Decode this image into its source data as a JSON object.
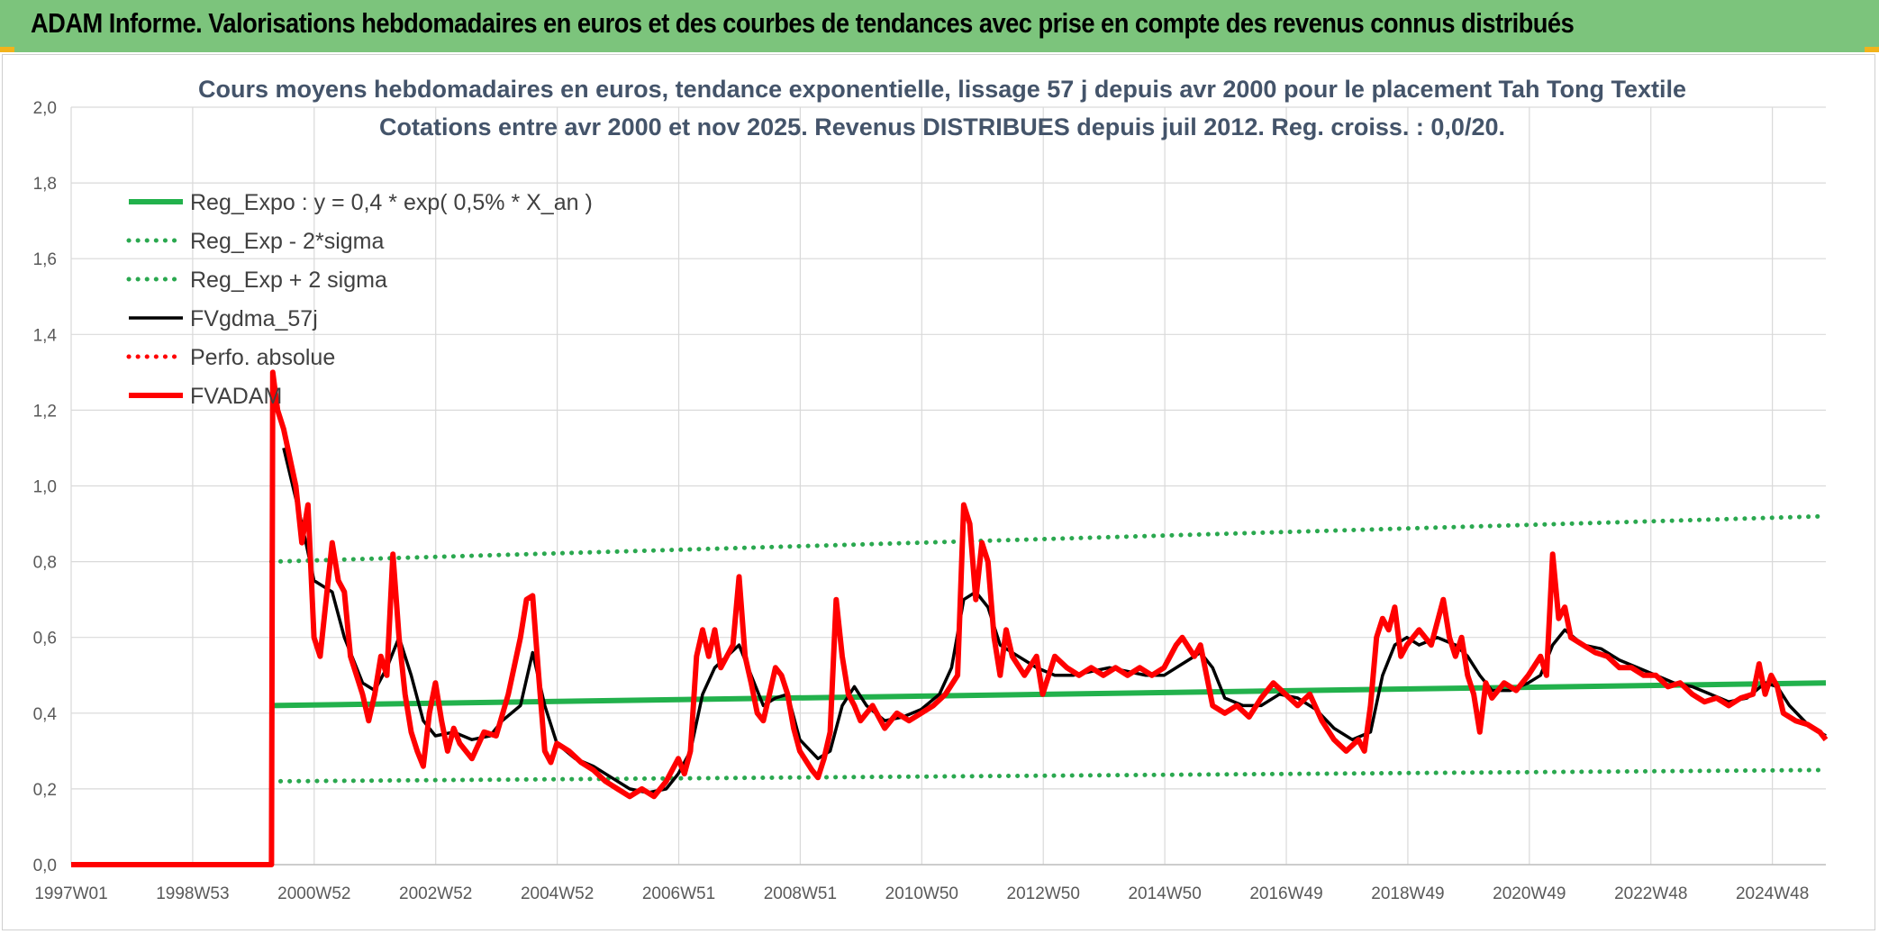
{
  "header": {
    "title": "ADAM Informe. Valorisations hebdomadaires en euros et des courbes de tendances avec prise en compte des revenus connus distribués"
  },
  "colors": {
    "header_bg": "#7cc47c",
    "accent": "#f2b31b",
    "green": "#22b14c",
    "dotted_green": "#2aa84f",
    "black": "#000000",
    "red": "#ff0000"
  },
  "chart_data": {
    "type": "line",
    "title": "Cours moyens hebdomadaires en euros, tendance exponentielle, lissage 57 j depuis avr 2000 pour le placement Tah Tong Textile",
    "subtitle": "Cotations entre avr 2000 et nov 2025. Revenus DISTRIBUES depuis juil 2012. Reg. croiss. : 0,0/20.",
    "xlabel": "",
    "ylabel": "",
    "x_tick_labels": [
      "1997W01",
      "1998W53",
      "2000W52",
      "2002W52",
      "2004W52",
      "2006W51",
      "2008W51",
      "2010W50",
      "2012W50",
      "2014W50",
      "2016W49",
      "2018W49",
      "2020W49",
      "2022W48",
      "2024W48"
    ],
    "y_tick_labels": [
      "0,0",
      "0,2",
      "0,4",
      "0,6",
      "0,8",
      "1,0",
      "1,2",
      "1,4",
      "1,6",
      "1,8",
      "2,0"
    ],
    "xlim": [
      1997.0,
      2025.9
    ],
    "ylim": [
      0,
      2
    ],
    "grid": true,
    "legend_position": "top-left",
    "series": [
      {
        "name": "Reg_Expo : y = 0,4 * exp( 0,5% *  X_an )",
        "style": "solid-thick",
        "color": "#22b14c",
        "points": [
          [
            2000.3,
            0.42
          ],
          [
            2025.9,
            0.48
          ]
        ]
      },
      {
        "name": "Reg_Exp - 2*sigma",
        "style": "dotted",
        "color": "#2aa84f",
        "points": [
          [
            2000.3,
            0.22
          ],
          [
            2025.9,
            0.25
          ]
        ]
      },
      {
        "name": "Reg_Exp + 2 sigma",
        "style": "dotted",
        "color": "#2aa84f",
        "points": [
          [
            2000.3,
            0.8
          ],
          [
            2025.9,
            0.92
          ]
        ]
      },
      {
        "name": "FVgdma_57j",
        "style": "solid",
        "color": "#000000",
        "points": [
          [
            2000.5,
            1.1
          ],
          [
            2000.8,
            0.9
          ],
          [
            2001.0,
            0.75
          ],
          [
            2001.3,
            0.72
          ],
          [
            2001.5,
            0.6
          ],
          [
            2001.8,
            0.48
          ],
          [
            2002.0,
            0.46
          ],
          [
            2002.2,
            0.52
          ],
          [
            2002.4,
            0.6
          ],
          [
            2002.6,
            0.5
          ],
          [
            2002.8,
            0.38
          ],
          [
            2003.0,
            0.34
          ],
          [
            2003.3,
            0.35
          ],
          [
            2003.6,
            0.33
          ],
          [
            2003.9,
            0.34
          ],
          [
            2004.1,
            0.38
          ],
          [
            2004.4,
            0.42
          ],
          [
            2004.6,
            0.56
          ],
          [
            2004.8,
            0.42
          ],
          [
            2005.0,
            0.32
          ],
          [
            2005.3,
            0.28
          ],
          [
            2005.6,
            0.26
          ],
          [
            2005.9,
            0.23
          ],
          [
            2006.2,
            0.2
          ],
          [
            2006.5,
            0.19
          ],
          [
            2006.8,
            0.2
          ],
          [
            2007.0,
            0.24
          ],
          [
            2007.2,
            0.3
          ],
          [
            2007.4,
            0.45
          ],
          [
            2007.6,
            0.52
          ],
          [
            2007.8,
            0.55
          ],
          [
            2008.0,
            0.58
          ],
          [
            2008.2,
            0.5
          ],
          [
            2008.4,
            0.42
          ],
          [
            2008.6,
            0.44
          ],
          [
            2008.8,
            0.45
          ],
          [
            2009.0,
            0.33
          ],
          [
            2009.3,
            0.28
          ],
          [
            2009.5,
            0.3
          ],
          [
            2009.7,
            0.42
          ],
          [
            2009.9,
            0.47
          ],
          [
            2010.1,
            0.42
          ],
          [
            2010.4,
            0.38
          ],
          [
            2010.7,
            0.39
          ],
          [
            2011.0,
            0.41
          ],
          [
            2011.3,
            0.45
          ],
          [
            2011.5,
            0.52
          ],
          [
            2011.7,
            0.7
          ],
          [
            2011.9,
            0.72
          ],
          [
            2012.1,
            0.68
          ],
          [
            2012.3,
            0.58
          ],
          [
            2012.6,
            0.55
          ],
          [
            2012.9,
            0.52
          ],
          [
            2013.2,
            0.5
          ],
          [
            2013.5,
            0.5
          ],
          [
            2013.8,
            0.51
          ],
          [
            2014.1,
            0.52
          ],
          [
            2014.4,
            0.51
          ],
          [
            2014.7,
            0.5
          ],
          [
            2015.0,
            0.5
          ],
          [
            2015.3,
            0.53
          ],
          [
            2015.6,
            0.56
          ],
          [
            2015.8,
            0.52
          ],
          [
            2016.0,
            0.44
          ],
          [
            2016.3,
            0.42
          ],
          [
            2016.6,
            0.42
          ],
          [
            2016.9,
            0.45
          ],
          [
            2017.2,
            0.44
          ],
          [
            2017.5,
            0.41
          ],
          [
            2017.8,
            0.36
          ],
          [
            2018.1,
            0.33
          ],
          [
            2018.4,
            0.35
          ],
          [
            2018.6,
            0.5
          ],
          [
            2018.8,
            0.58
          ],
          [
            2019.0,
            0.6
          ],
          [
            2019.2,
            0.58
          ],
          [
            2019.5,
            0.6
          ],
          [
            2019.8,
            0.58
          ],
          [
            2020.0,
            0.55
          ],
          [
            2020.2,
            0.5
          ],
          [
            2020.4,
            0.46
          ],
          [
            2020.7,
            0.46
          ],
          [
            2021.0,
            0.48
          ],
          [
            2021.2,
            0.5
          ],
          [
            2021.4,
            0.58
          ],
          [
            2021.6,
            0.62
          ],
          [
            2021.9,
            0.58
          ],
          [
            2022.2,
            0.57
          ],
          [
            2022.5,
            0.54
          ],
          [
            2022.8,
            0.52
          ],
          [
            2023.1,
            0.5
          ],
          [
            2023.4,
            0.48
          ],
          [
            2023.7,
            0.47
          ],
          [
            2024.0,
            0.45
          ],
          [
            2024.3,
            0.43
          ],
          [
            2024.6,
            0.44
          ],
          [
            2024.9,
            0.48
          ],
          [
            2025.1,
            0.47
          ],
          [
            2025.3,
            0.42
          ],
          [
            2025.6,
            0.37
          ],
          [
            2025.9,
            0.34
          ]
        ]
      },
      {
        "name": "Perfo. absolue",
        "style": "dotted",
        "color": "#ff0000",
        "points": []
      },
      {
        "name": "FVADAM",
        "style": "solid-thick",
        "color": "#ff0000",
        "points": [
          [
            1997.0,
            0.0
          ],
          [
            2000.3,
            0.0
          ],
          [
            2000.32,
            1.3
          ],
          [
            2000.4,
            1.2
          ],
          [
            2000.5,
            1.15
          ],
          [
            2000.7,
            1.0
          ],
          [
            2000.8,
            0.85
          ],
          [
            2000.9,
            0.95
          ],
          [
            2001.0,
            0.6
          ],
          [
            2001.1,
            0.55
          ],
          [
            2001.2,
            0.7
          ],
          [
            2001.3,
            0.85
          ],
          [
            2001.4,
            0.75
          ],
          [
            2001.5,
            0.72
          ],
          [
            2001.6,
            0.55
          ],
          [
            2001.8,
            0.45
          ],
          [
            2001.9,
            0.38
          ],
          [
            2002.0,
            0.45
          ],
          [
            2002.1,
            0.55
          ],
          [
            2002.2,
            0.5
          ],
          [
            2002.3,
            0.82
          ],
          [
            2002.4,
            0.6
          ],
          [
            2002.5,
            0.45
          ],
          [
            2002.6,
            0.35
          ],
          [
            2002.7,
            0.3
          ],
          [
            2002.8,
            0.26
          ],
          [
            2002.9,
            0.4
          ],
          [
            2003.0,
            0.48
          ],
          [
            2003.1,
            0.38
          ],
          [
            2003.2,
            0.3
          ],
          [
            2003.3,
            0.36
          ],
          [
            2003.4,
            0.32
          ],
          [
            2003.6,
            0.28
          ],
          [
            2003.8,
            0.35
          ],
          [
            2004.0,
            0.34
          ],
          [
            2004.2,
            0.45
          ],
          [
            2004.4,
            0.6
          ],
          [
            2004.5,
            0.7
          ],
          [
            2004.6,
            0.71
          ],
          [
            2004.7,
            0.5
          ],
          [
            2004.8,
            0.3
          ],
          [
            2004.9,
            0.27
          ],
          [
            2005.0,
            0.32
          ],
          [
            2005.2,
            0.3
          ],
          [
            2005.4,
            0.27
          ],
          [
            2005.6,
            0.25
          ],
          [
            2005.8,
            0.22
          ],
          [
            2006.0,
            0.2
          ],
          [
            2006.2,
            0.18
          ],
          [
            2006.4,
            0.2
          ],
          [
            2006.6,
            0.18
          ],
          [
            2006.8,
            0.22
          ],
          [
            2007.0,
            0.28
          ],
          [
            2007.1,
            0.24
          ],
          [
            2007.2,
            0.3
          ],
          [
            2007.3,
            0.55
          ],
          [
            2007.4,
            0.62
          ],
          [
            2007.5,
            0.55
          ],
          [
            2007.6,
            0.62
          ],
          [
            2007.7,
            0.52
          ],
          [
            2007.9,
            0.58
          ],
          [
            2008.0,
            0.76
          ],
          [
            2008.1,
            0.55
          ],
          [
            2008.2,
            0.48
          ],
          [
            2008.3,
            0.4
          ],
          [
            2008.4,
            0.38
          ],
          [
            2008.5,
            0.45
          ],
          [
            2008.6,
            0.52
          ],
          [
            2008.7,
            0.5
          ],
          [
            2008.8,
            0.45
          ],
          [
            2008.9,
            0.36
          ],
          [
            2009.0,
            0.3
          ],
          [
            2009.2,
            0.25
          ],
          [
            2009.3,
            0.23
          ],
          [
            2009.4,
            0.28
          ],
          [
            2009.5,
            0.35
          ],
          [
            2009.6,
            0.7
          ],
          [
            2009.7,
            0.55
          ],
          [
            2009.8,
            0.45
          ],
          [
            2009.9,
            0.42
          ],
          [
            2010.0,
            0.38
          ],
          [
            2010.2,
            0.42
          ],
          [
            2010.4,
            0.36
          ],
          [
            2010.6,
            0.4
          ],
          [
            2010.8,
            0.38
          ],
          [
            2011.0,
            0.4
          ],
          [
            2011.2,
            0.42
          ],
          [
            2011.4,
            0.45
          ],
          [
            2011.6,
            0.5
          ],
          [
            2011.7,
            0.95
          ],
          [
            2011.8,
            0.9
          ],
          [
            2011.9,
            0.7
          ],
          [
            2012.0,
            0.85
          ],
          [
            2012.1,
            0.8
          ],
          [
            2012.2,
            0.6
          ],
          [
            2012.3,
            0.5
          ],
          [
            2012.4,
            0.62
          ],
          [
            2012.5,
            0.55
          ],
          [
            2012.7,
            0.5
          ],
          [
            2012.9,
            0.55
          ],
          [
            2013.0,
            0.45
          ],
          [
            2013.2,
            0.55
          ],
          [
            2013.4,
            0.52
          ],
          [
            2013.6,
            0.5
          ],
          [
            2013.8,
            0.52
          ],
          [
            2014.0,
            0.5
          ],
          [
            2014.2,
            0.52
          ],
          [
            2014.4,
            0.5
          ],
          [
            2014.6,
            0.52
          ],
          [
            2014.8,
            0.5
          ],
          [
            2015.0,
            0.52
          ],
          [
            2015.2,
            0.58
          ],
          [
            2015.3,
            0.6
          ],
          [
            2015.5,
            0.55
          ],
          [
            2015.6,
            0.58
          ],
          [
            2015.7,
            0.5
          ],
          [
            2015.8,
            0.42
          ],
          [
            2016.0,
            0.4
          ],
          [
            2016.2,
            0.42
          ],
          [
            2016.4,
            0.39
          ],
          [
            2016.6,
            0.44
          ],
          [
            2016.8,
            0.48
          ],
          [
            2017.0,
            0.45
          ],
          [
            2017.2,
            0.42
          ],
          [
            2017.4,
            0.45
          ],
          [
            2017.6,
            0.38
          ],
          [
            2017.8,
            0.33
          ],
          [
            2018.0,
            0.3
          ],
          [
            2018.2,
            0.33
          ],
          [
            2018.3,
            0.3
          ],
          [
            2018.4,
            0.42
          ],
          [
            2018.5,
            0.6
          ],
          [
            2018.6,
            0.65
          ],
          [
            2018.7,
            0.62
          ],
          [
            2018.8,
            0.68
          ],
          [
            2018.9,
            0.55
          ],
          [
            2019.0,
            0.58
          ],
          [
            2019.2,
            0.62
          ],
          [
            2019.4,
            0.58
          ],
          [
            2019.6,
            0.7
          ],
          [
            2019.7,
            0.6
          ],
          [
            2019.8,
            0.55
          ],
          [
            2019.9,
            0.6
          ],
          [
            2020.0,
            0.5
          ],
          [
            2020.1,
            0.45
          ],
          [
            2020.2,
            0.35
          ],
          [
            2020.3,
            0.48
          ],
          [
            2020.4,
            0.44
          ],
          [
            2020.6,
            0.48
          ],
          [
            2020.8,
            0.46
          ],
          [
            2021.0,
            0.5
          ],
          [
            2021.2,
            0.55
          ],
          [
            2021.3,
            0.5
          ],
          [
            2021.4,
            0.82
          ],
          [
            2021.5,
            0.65
          ],
          [
            2021.6,
            0.68
          ],
          [
            2021.7,
            0.6
          ],
          [
            2021.9,
            0.58
          ],
          [
            2022.1,
            0.56
          ],
          [
            2022.3,
            0.55
          ],
          [
            2022.5,
            0.52
          ],
          [
            2022.7,
            0.52
          ],
          [
            2022.9,
            0.5
          ],
          [
            2023.1,
            0.5
          ],
          [
            2023.3,
            0.47
          ],
          [
            2023.5,
            0.48
          ],
          [
            2023.7,
            0.45
          ],
          [
            2023.9,
            0.43
          ],
          [
            2024.1,
            0.44
          ],
          [
            2024.3,
            0.42
          ],
          [
            2024.5,
            0.44
          ],
          [
            2024.7,
            0.45
          ],
          [
            2024.8,
            0.53
          ],
          [
            2024.9,
            0.45
          ],
          [
            2025.0,
            0.5
          ],
          [
            2025.1,
            0.47
          ],
          [
            2025.2,
            0.4
          ],
          [
            2025.4,
            0.38
          ],
          [
            2025.6,
            0.37
          ],
          [
            2025.8,
            0.35
          ],
          [
            2025.9,
            0.33
          ]
        ]
      }
    ]
  }
}
